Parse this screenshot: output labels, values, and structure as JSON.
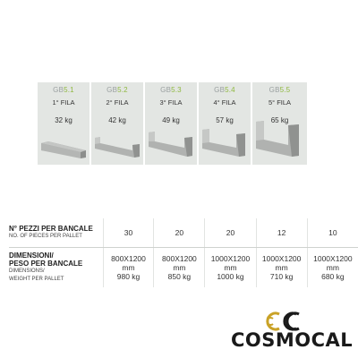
{
  "products": [
    {
      "code_prefix": "GB",
      "code_number": "5.1",
      "row": "1° FILA",
      "weight": "32 kg"
    },
    {
      "code_prefix": "GB",
      "code_number": "5.2",
      "row": "2° FILA",
      "weight": "42 kg"
    },
    {
      "code_prefix": "GB",
      "code_number": "5.3",
      "row": "3° FILA",
      "weight": "49 kg"
    },
    {
      "code_prefix": "GB",
      "code_number": "5.4",
      "row": "4° FILA",
      "weight": "57 kg"
    },
    {
      "code_prefix": "GB",
      "code_number": "5.5",
      "row": "5° FILA",
      "weight": "65 kg"
    }
  ],
  "table": {
    "pieces": {
      "label_it": "N° PEZZI PER BANCALE",
      "label_en": "NO. OF PIECES PER PALLET",
      "values": [
        "30",
        "20",
        "20",
        "12",
        "10"
      ]
    },
    "dimensions": {
      "label_it_1": "DIMENSIONI/",
      "label_it_2": "PESO PER BANCALE",
      "label_en_1": "DIMENSIONS/",
      "label_en_2": "WEIGHT PER PALLET",
      "values": [
        {
          "size": "800X1200",
          "unit": "mm",
          "weight": "980 kg"
        },
        {
          "size": "800X1200",
          "unit": "mm",
          "weight": "850 kg"
        },
        {
          "size": "1000X1200",
          "unit": "mm",
          "weight": "1000 kg"
        },
        {
          "size": "1000X1200",
          "unit": "mm",
          "weight": "710 kg"
        },
        {
          "size": "1000X1200",
          "unit": "mm",
          "weight": "680 kg"
        }
      ]
    }
  },
  "logo": {
    "text": "COSMOCAL",
    "accent_color": "#c9a227",
    "dark_color": "#1a1a1a"
  }
}
